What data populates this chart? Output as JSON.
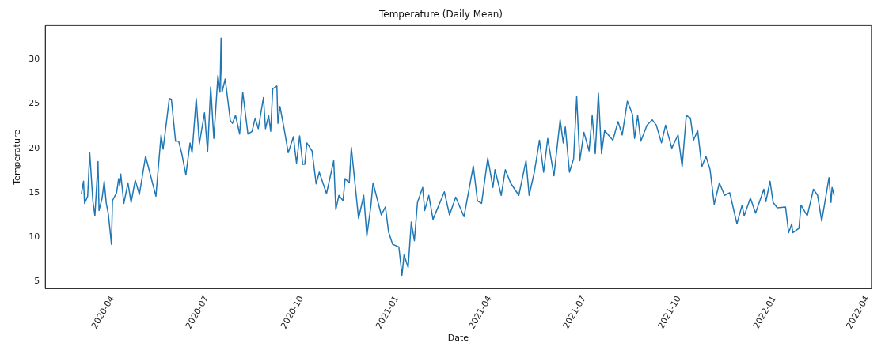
{
  "chart_data": {
    "type": "line",
    "title": "Temperature (Daily Mean)",
    "xlabel": "Date",
    "ylabel": "Temperature",
    "x": [
      "2020-03-02",
      "2020-03-04",
      "2020-03-05",
      "2020-03-08",
      "2020-03-10",
      "2020-03-13",
      "2020-03-15",
      "2020-03-18",
      "2020-03-19",
      "2020-03-22",
      "2020-03-24",
      "2020-03-26",
      "2020-03-28",
      "2020-03-31",
      "2020-04-01",
      "2020-04-05",
      "2020-04-07",
      "2020-04-08",
      "2020-04-09",
      "2020-04-12",
      "2020-04-16",
      "2020-04-19",
      "2020-04-23",
      "2020-04-27",
      "2020-05-03",
      "2020-05-13",
      "2020-05-18",
      "2020-05-20",
      "2020-05-26",
      "2020-05-28",
      "2020-06-01",
      "2020-06-04",
      "2020-06-07",
      "2020-06-11",
      "2020-06-15",
      "2020-06-17",
      "2020-06-21",
      "2020-06-24",
      "2020-06-29",
      "2020-07-02",
      "2020-07-05",
      "2020-07-08",
      "2020-07-12",
      "2020-07-14",
      "2020-07-15",
      "2020-07-16",
      "2020-07-19",
      "2020-07-24",
      "2020-07-26",
      "2020-07-29",
      "2020-08-02",
      "2020-08-05",
      "2020-08-10",
      "2020-08-14",
      "2020-08-17",
      "2020-08-20",
      "2020-08-25",
      "2020-08-27",
      "2020-08-30",
      "2020-09-01",
      "2020-09-03",
      "2020-09-07",
      "2020-09-08",
      "2020-09-10",
      "2020-09-14",
      "2020-09-18",
      "2020-09-23",
      "2020-09-26",
      "2020-09-29",
      "2020-10-02",
      "2020-10-04",
      "2020-10-06",
      "2020-10-11",
      "2020-10-15",
      "2020-10-18",
      "2020-10-25",
      "2020-11-01",
      "2020-11-03",
      "2020-11-06",
      "2020-11-10",
      "2020-11-12",
      "2020-11-16",
      "2020-11-18",
      "2020-11-25",
      "2020-11-30",
      "2020-12-03",
      "2020-12-07",
      "2020-12-09",
      "2020-12-17",
      "2020-12-21",
      "2020-12-24",
      "2020-12-28",
      "2021-01-03",
      "2021-01-06",
      "2021-01-08",
      "2021-01-12",
      "2021-01-15",
      "2021-01-18",
      "2021-01-21",
      "2021-01-26",
      "2021-01-28",
      "2021-02-01",
      "2021-02-05",
      "2021-02-10",
      "2021-02-16",
      "2021-02-21",
      "2021-02-27",
      "2021-03-07",
      "2021-03-16",
      "2021-03-20",
      "2021-03-24",
      "2021-03-30",
      "2021-04-04",
      "2021-04-06",
      "2021-04-12",
      "2021-04-16",
      "2021-04-21",
      "2021-04-29",
      "2021-05-06",
      "2021-05-09",
      "2021-05-14",
      "2021-05-19",
      "2021-05-23",
      "2021-05-27",
      "2021-06-02",
      "2021-06-08",
      "2021-06-11",
      "2021-06-13",
      "2021-06-17",
      "2021-06-21",
      "2021-06-24",
      "2021-06-27",
      "2021-07-01",
      "2021-07-06",
      "2021-07-09",
      "2021-07-12",
      "2021-07-15",
      "2021-07-18",
      "2021-07-21",
      "2021-07-29",
      "2021-08-03",
      "2021-08-07",
      "2021-08-12",
      "2021-08-17",
      "2021-08-19",
      "2021-08-22",
      "2021-08-25",
      "2021-08-31",
      "2021-09-05",
      "2021-09-09",
      "2021-09-14",
      "2021-09-18",
      "2021-09-24",
      "2021-09-30",
      "2021-10-04",
      "2021-10-08",
      "2021-10-12",
      "2021-10-15",
      "2021-10-19",
      "2021-10-23",
      "2021-10-27",
      "2021-10-31",
      "2021-11-04",
      "2021-11-09",
      "2021-11-14",
      "2021-11-19",
      "2021-11-26",
      "2021-12-01",
      "2021-12-03",
      "2021-12-09",
      "2021-12-14",
      "2021-12-22",
      "2021-12-24",
      "2021-12-28",
      "2021-12-31",
      "2022-01-04",
      "2022-01-12",
      "2022-01-15",
      "2022-01-18",
      "2022-01-19",
      "2022-01-25",
      "2022-01-27",
      "2022-02-02",
      "2022-02-08",
      "2022-02-12",
      "2022-02-16",
      "2022-02-19",
      "2022-02-23",
      "2022-02-25",
      "2022-02-26",
      "2022-02-28"
    ],
    "series": [
      {
        "color": "#1f77b4",
        "values": [
          14.9,
          16.3,
          13.8,
          14.6,
          19.5,
          14.1,
          12.4,
          18.5,
          13.0,
          14.4,
          16.3,
          13.8,
          12.6,
          9.2,
          14.1,
          15.0,
          16.6,
          15.8,
          17.1,
          13.8,
          16.1,
          13.9,
          16.4,
          14.8,
          19.1,
          14.6,
          21.5,
          19.9,
          25.6,
          25.5,
          20.8,
          20.8,
          19.4,
          17.0,
          20.6,
          19.5,
          25.6,
          20.5,
          24.0,
          19.6,
          26.9,
          21.1,
          28.2,
          26.3,
          32.4,
          26.3,
          27.8,
          23.1,
          22.8,
          23.7,
          21.6,
          26.3,
          21.6,
          21.9,
          23.4,
          22.2,
          25.7,
          22.2,
          23.7,
          21.9,
          26.7,
          27.0,
          22.8,
          24.7,
          22.2,
          19.5,
          21.3,
          18.3,
          21.4,
          18.2,
          18.2,
          20.6,
          19.7,
          16.0,
          17.3,
          14.9,
          18.6,
          13.1,
          14.7,
          14.1,
          16.6,
          16.1,
          20.1,
          12.1,
          14.7,
          10.1,
          13.6,
          16.1,
          12.5,
          13.4,
          10.6,
          9.2,
          8.9,
          5.7,
          8.0,
          6.6,
          11.7,
          9.6,
          13.9,
          15.6,
          13.0,
          14.7,
          12.0,
          13.4,
          15.1,
          12.5,
          14.5,
          12.3,
          18.0,
          14.1,
          13.8,
          18.9,
          15.6,
          17.6,
          14.7,
          17.6,
          16.1,
          14.7,
          18.6,
          14.7,
          17.3,
          20.9,
          17.3,
          21.1,
          16.9,
          23.2,
          20.6,
          22.4,
          17.3,
          18.8,
          25.8,
          18.6,
          21.8,
          19.7,
          23.7,
          19.4,
          26.2,
          19.4,
          22.0,
          20.9,
          23.0,
          21.5,
          25.3,
          23.8,
          21.1,
          23.7,
          20.8,
          22.6,
          23.2,
          22.6,
          20.6,
          22.6,
          20.0,
          21.5,
          17.9,
          23.7,
          23.4,
          20.9,
          22.0,
          17.9,
          19.1,
          17.6,
          13.7,
          16.1,
          14.7,
          15.0,
          11.5,
          13.6,
          12.4,
          14.4,
          12.7,
          15.4,
          14.0,
          16.3,
          13.9,
          13.3,
          13.4,
          10.5,
          11.5,
          10.5,
          11.0,
          13.6,
          12.4,
          15.4,
          14.7,
          11.8,
          13.9,
          16.7,
          13.9,
          15.6,
          14.7
        ]
      }
    ],
    "xlim": [
      "2020-01-27",
      "2022-04-05"
    ],
    "xticks": [
      "2020-04",
      "2020-07",
      "2020-10",
      "2021-01",
      "2021-04",
      "2021-07",
      "2021-10",
      "2022-01",
      "2022-04"
    ],
    "ylim": [
      4.2,
      33.8
    ],
    "yticks": [
      5,
      10,
      15,
      20,
      25,
      30
    ],
    "grid": false,
    "legend": false,
    "marker": "none",
    "line_style": "solid"
  }
}
